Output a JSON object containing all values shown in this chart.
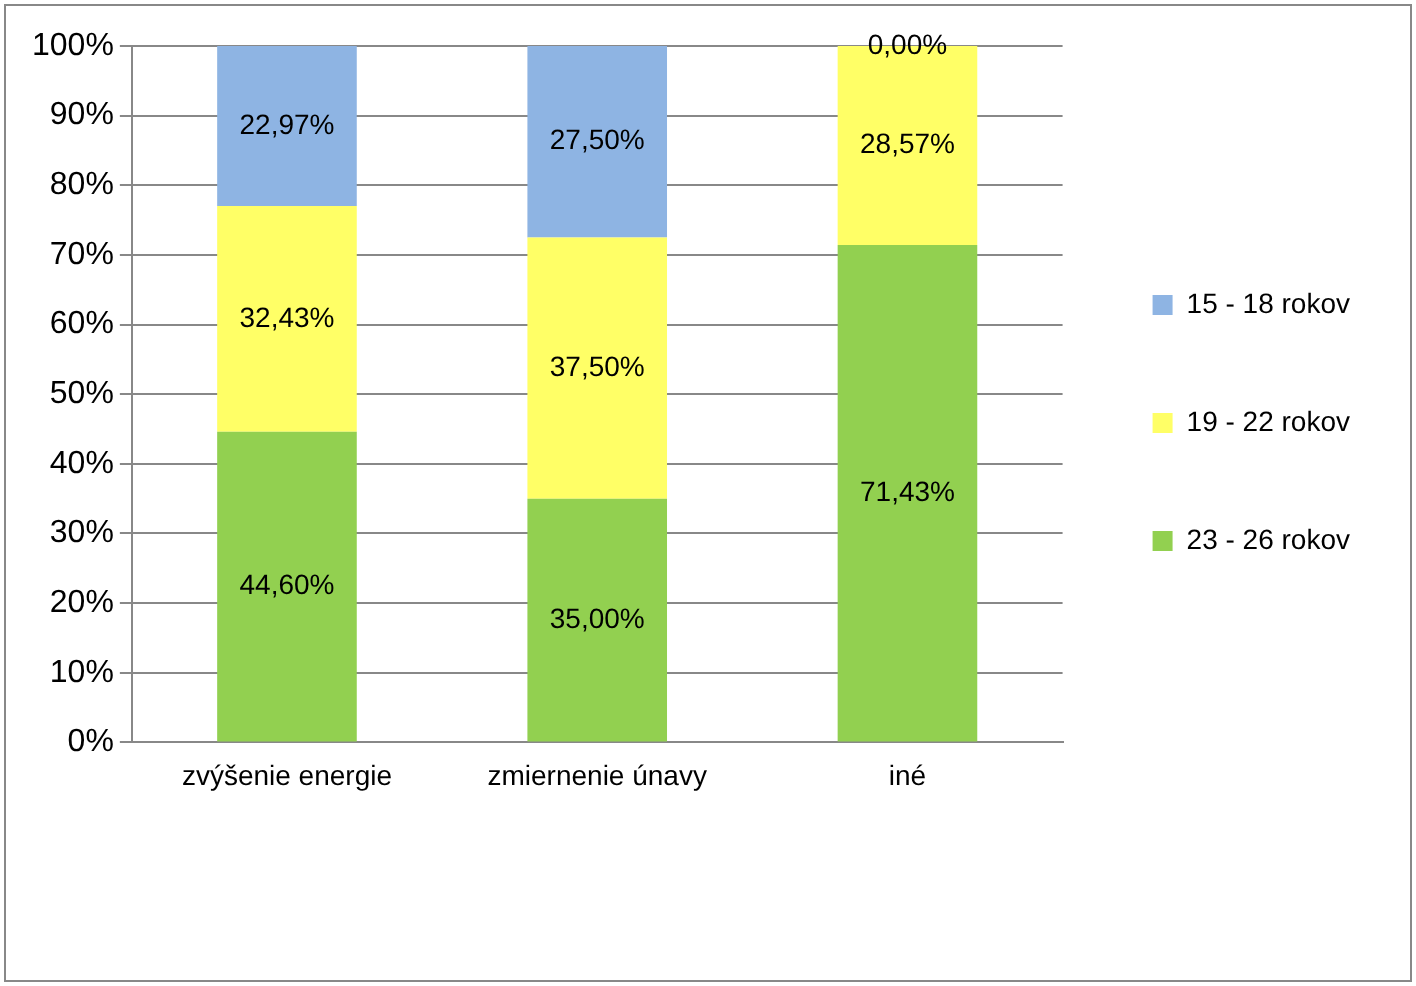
{
  "chart_data": {
    "type": "bar",
    "stacked": true,
    "categories": [
      "zvýšenie energie",
      "zmiernenie únavy",
      "iné"
    ],
    "series": [
      {
        "name": "23 - 26 rokov",
        "color": "#92d050",
        "values": [
          44.6,
          35.0,
          71.43
        ],
        "value_labels": [
          "44,60%",
          "35,00%",
          "71,43%"
        ]
      },
      {
        "name": "19 - 22 rokov",
        "color": "#ffff66",
        "values": [
          32.43,
          37.5,
          28.57
        ],
        "value_labels": [
          "32,43%",
          "37,50%",
          "28,57%"
        ]
      },
      {
        "name": "15 - 18 rokov",
        "color": "#8eb4e3",
        "values": [
          22.97,
          27.5,
          0
        ],
        "value_labels": [
          "22,97%",
          "27,50%",
          "0,00%"
        ]
      }
    ],
    "ylim": [
      0,
      100
    ],
    "yticks": [
      {
        "value": 0,
        "label": "0%"
      },
      {
        "value": 10,
        "label": "10%"
      },
      {
        "value": 20,
        "label": "20%"
      },
      {
        "value": 30,
        "label": "30%"
      },
      {
        "value": 40,
        "label": "40%"
      },
      {
        "value": 50,
        "label": "50%"
      },
      {
        "value": 60,
        "label": "60%"
      },
      {
        "value": 70,
        "label": "70%"
      },
      {
        "value": 80,
        "label": "80%"
      },
      {
        "value": 90,
        "label": "90%"
      },
      {
        "value": 100,
        "label": "100%"
      }
    ],
    "grid": "y",
    "legend": "right"
  }
}
